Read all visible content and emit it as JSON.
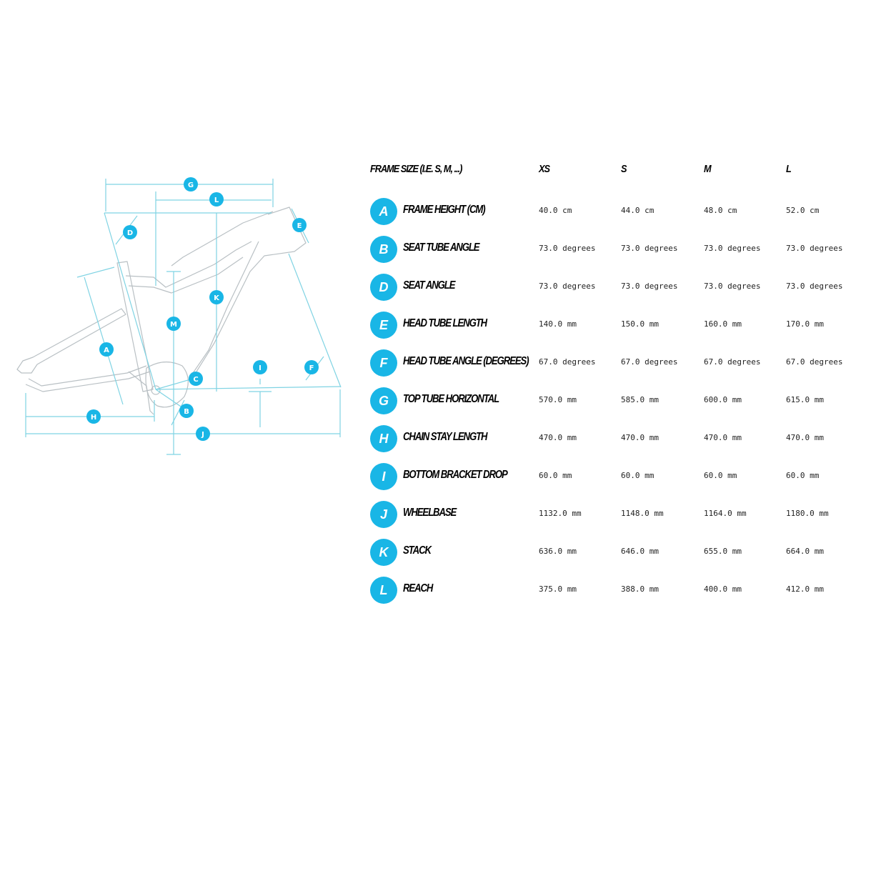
{
  "table": {
    "header": {
      "frame_size": "FRAME SIZE (I.E. S, M, ...)",
      "sizes": [
        "XS",
        "S",
        "M",
        "L"
      ]
    },
    "rows": [
      {
        "letter": "A",
        "label": "FRAME HEIGHT (CM)",
        "values": [
          "40.0 cm",
          "44.0 cm",
          "48.0 cm",
          "52.0 cm"
        ]
      },
      {
        "letter": "B",
        "label": "SEAT TUBE ANGLE",
        "values": [
          "73.0 degrees",
          "73.0 degrees",
          "73.0 degrees",
          "73.0 degrees"
        ]
      },
      {
        "letter": "D",
        "label": "SEAT ANGLE",
        "values": [
          "73.0 degrees",
          "73.0 degrees",
          "73.0 degrees",
          "73.0 degrees"
        ]
      },
      {
        "letter": "E",
        "label": "HEAD TUBE LENGTH",
        "values": [
          "140.0 mm",
          "150.0 mm",
          "160.0 mm",
          "170.0 mm"
        ]
      },
      {
        "letter": "F",
        "label": "HEAD TUBE ANGLE (DEGREES)",
        "values": [
          "67.0 degrees",
          "67.0 degrees",
          "67.0 degrees",
          "67.0 degrees"
        ]
      },
      {
        "letter": "G",
        "label": "TOP TUBE HORIZONTAL",
        "values": [
          "570.0 mm",
          "585.0 mm",
          "600.0 mm",
          "615.0 mm"
        ]
      },
      {
        "letter": "H",
        "label": "CHAIN STAY LENGTH",
        "values": [
          "470.0 mm",
          "470.0 mm",
          "470.0 mm",
          "470.0 mm"
        ]
      },
      {
        "letter": "I",
        "label": "BOTTOM BRACKET DROP",
        "values": [
          "60.0 mm",
          "60.0 mm",
          "60.0 mm",
          "60.0 mm"
        ]
      },
      {
        "letter": "J",
        "label": "WHEELBASE",
        "values": [
          "1132.0 mm",
          "1148.0 mm",
          "1164.0 mm",
          "1180.0 mm"
        ]
      },
      {
        "letter": "K",
        "label": "STACK",
        "values": [
          "636.0 mm",
          "646.0 mm",
          "655.0 mm",
          "664.0 mm"
        ]
      },
      {
        "letter": "L",
        "label": "REACH",
        "values": [
          "375.0 mm",
          "388.0 mm",
          "400.0 mm",
          "412.0 mm"
        ]
      }
    ]
  },
  "diagram": {
    "markers": [
      "G",
      "L",
      "D",
      "E",
      "K",
      "M",
      "A",
      "I",
      "F",
      "C",
      "H",
      "B",
      "J"
    ],
    "colors": {
      "accent": "#19b6e6",
      "dimension_line": "#7fd3e3",
      "frame_outline": "#b9c0c4"
    }
  }
}
